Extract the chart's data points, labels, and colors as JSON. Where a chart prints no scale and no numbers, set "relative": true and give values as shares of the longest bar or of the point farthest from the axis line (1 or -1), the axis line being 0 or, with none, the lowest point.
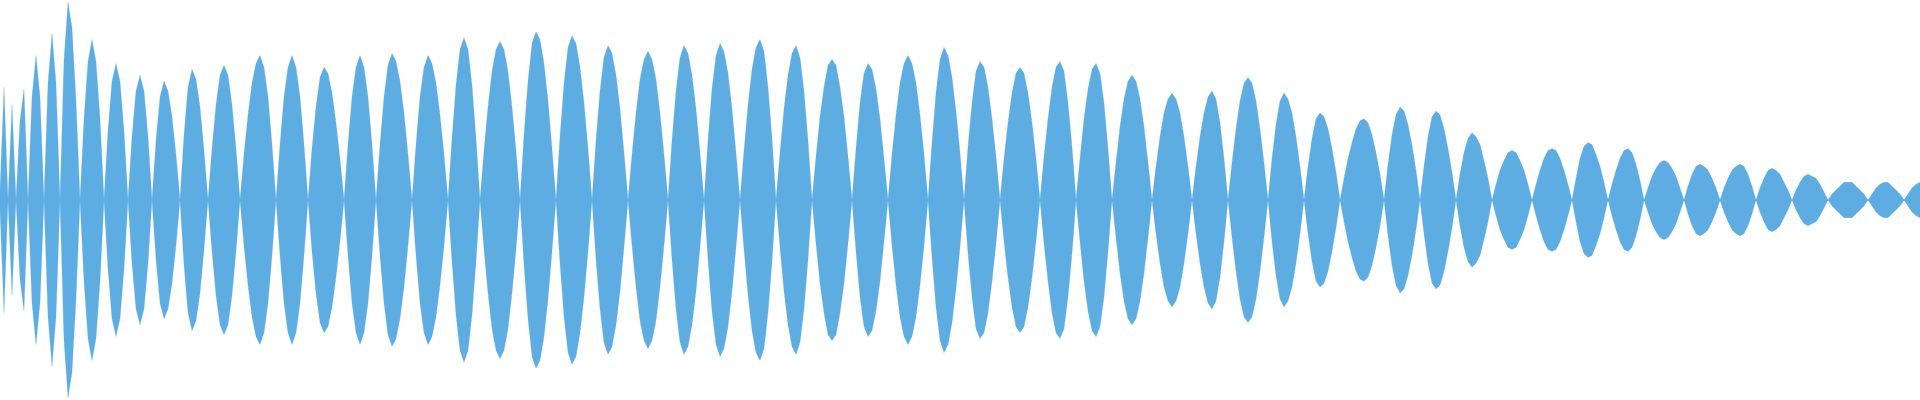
{
  "chart_data": {
    "type": "area",
    "relative": true,
    "categories": [
      null,
      null,
      null,
      null,
      null,
      null,
      null,
      null,
      null,
      null,
      null,
      null,
      null,
      null,
      null,
      null,
      null,
      null,
      null,
      null,
      null,
      null,
      null,
      null,
      null,
      null,
      null,
      null,
      null,
      null,
      null,
      null,
      null,
      null,
      null,
      null,
      null,
      null,
      null,
      null,
      null,
      null,
      null,
      null,
      null,
      null,
      null,
      null,
      null,
      null,
      null,
      null,
      null,
      null,
      null,
      null,
      null,
      null,
      null,
      null,
      null,
      null,
      null,
      null,
      null,
      null,
      null,
      null,
      null,
      null,
      null,
      null,
      null,
      null,
      null,
      null,
      null,
      null,
      null,
      null,
      null,
      null,
      null,
      null,
      null,
      null,
      null,
      null,
      null,
      null,
      null,
      null,
      null,
      null,
      null,
      null,
      null,
      null,
      null,
      null,
      null,
      null,
      null,
      null,
      null,
      null,
      null,
      null,
      null,
      null,
      null,
      null,
      null,
      null,
      null,
      null,
      null,
      null,
      null,
      null,
      null,
      null,
      null,
      null,
      null,
      null,
      null,
      null,
      null,
      null,
      null,
      null,
      null,
      null,
      null,
      null,
      null,
      null,
      null,
      null,
      null,
      null,
      null,
      null,
      null,
      null,
      null,
      null,
      null,
      null,
      null,
      null,
      null,
      null,
      null,
      null,
      null,
      null,
      null,
      null,
      null,
      null,
      null,
      null,
      null,
      null,
      null,
      null,
      null,
      null,
      null,
      null,
      null,
      null,
      null,
      null,
      null,
      null,
      null,
      null,
      null,
      null,
      null,
      null,
      null,
      null,
      null,
      null,
      null,
      null,
      null,
      null,
      null,
      null,
      null,
      null,
      null,
      null,
      null,
      null,
      null,
      null,
      null,
      null,
      null,
      null,
      null,
      null,
      null,
      null,
      null,
      null,
      null,
      null,
      null,
      null,
      null,
      null,
      null,
      null,
      null,
      null,
      null,
      null,
      null,
      null,
      null,
      null,
      null,
      null,
      null,
      null,
      null,
      null,
      null,
      null,
      null,
      null,
      null,
      null,
      null,
      null,
      null,
      null,
      null,
      null,
      null,
      null,
      null,
      null,
      null,
      null,
      null,
      null,
      null,
      null,
      null,
      null,
      null,
      null,
      null,
      null,
      null,
      null,
      null,
      null,
      null,
      null,
      null,
      null,
      null,
      null,
      null,
      null,
      null,
      null,
      null,
      null,
      null,
      null,
      null,
      null,
      null,
      null,
      null,
      null,
      null,
      null,
      null,
      null,
      null,
      null,
      null,
      null,
      null,
      null,
      null,
      null,
      null,
      null,
      null,
      null,
      null,
      null,
      null,
      null,
      null,
      null,
      null,
      null,
      null,
      null,
      null,
      null,
      null,
      null,
      null,
      null,
      null,
      null,
      null,
      null,
      null,
      null,
      null,
      null,
      null,
      null,
      null,
      null,
      null,
      null,
      null,
      null,
      null,
      null,
      null,
      null,
      null,
      null,
      null,
      null,
      null,
      null,
      null,
      null,
      null,
      null,
      null,
      null,
      null,
      null,
      null,
      null,
      null,
      null,
      null,
      null,
      null,
      null,
      null,
      null,
      null,
      null,
      null,
      null,
      null,
      null,
      null,
      null,
      null,
      null,
      null,
      null,
      null,
      null,
      null,
      null,
      null,
      null,
      null,
      null,
      null,
      null,
      null,
      null,
      null,
      null,
      null,
      null,
      null,
      null,
      null,
      null,
      null,
      null,
      null,
      null,
      null,
      null,
      null,
      null,
      null,
      null,
      null,
      null,
      null,
      null,
      null,
      null,
      null,
      null,
      null,
      null,
      null,
      null,
      null,
      null,
      null,
      null,
      null,
      null,
      null,
      null,
      null,
      null,
      null,
      null,
      null,
      null,
      null,
      null,
      null,
      null,
      null,
      null,
      null,
      null,
      null,
      null,
      null,
      null,
      null,
      null,
      null,
      null,
      null,
      null,
      null,
      null,
      null,
      null,
      null,
      null,
      null,
      null,
      null,
      null,
      null,
      null,
      null,
      null,
      null,
      null,
      null,
      null,
      null,
      null,
      null,
      null,
      null,
      null,
      null,
      null,
      null,
      null,
      null,
      null,
      null,
      null,
      null
    ],
    "ref_lines": [
      {
        "axis": "y",
        "value": 0,
        "color": "#5dade2"
      }
    ],
    "series": [
      {
        "color": "#5dade2",
        "values": [
          0.05,
          0.57,
          0,
          0.48,
          0,
          0.4,
          0.56,
          0,
          0.52,
          0.73,
          0.52,
          0,
          0.59,
          0.84,
          0.59,
          0,
          0.71,
          1,
          0.87,
          0.5,
          0,
          0.41,
          0.7,
          0.81,
          0.7,
          0.41,
          0,
          0.35,
          0.6,
          0.69,
          0.6,
          0.35,
          0,
          0.32,
          0.55,
          0.63,
          0.55,
          0.32,
          0,
          0.3,
          0.52,
          0.6,
          0.55,
          0.42,
          0.23,
          0,
          0.33,
          0.57,
          0.66,
          0.61,
          0.47,
          0.25,
          0,
          0.26,
          0.48,
          0.63,
          0.68,
          0.63,
          0.48,
          0.26,
          0,
          0.23,
          0.43,
          0.59,
          0.69,
          0.73,
          0.67,
          0.52,
          0.28,
          0,
          0.28,
          0.52,
          0.67,
          0.73,
          0.67,
          0.52,
          0.28,
          0,
          0.26,
          0.47,
          0.62,
          0.67,
          0.64,
          0.54,
          0.39,
          0.21,
          0,
          0.28,
          0.52,
          0.67,
          0.73,
          0.67,
          0.52,
          0.28,
          0,
          0.28,
          0.52,
          0.68,
          0.74,
          0.7,
          0.6,
          0.44,
          0.23,
          0,
          0.28,
          0.52,
          0.67,
          0.73,
          0.69,
          0.59,
          0.43,
          0.23,
          0,
          0.31,
          0.58,
          0.76,
          0.82,
          0.76,
          0.58,
          0.31,
          0,
          0.25,
          0.47,
          0.65,
          0.76,
          0.8,
          0.76,
          0.65,
          0.47,
          0.25,
          0,
          0.33,
          0.6,
          0.79,
          0.85,
          0.81,
          0.69,
          0.5,
          0.26,
          0,
          0.32,
          0.59,
          0.77,
          0.83,
          0.79,
          0.67,
          0.49,
          0.26,
          0,
          0.3,
          0.55,
          0.72,
          0.78,
          0.74,
          0.63,
          0.46,
          0.24,
          0,
          0.23,
          0.44,
          0.61,
          0.71,
          0.75,
          0.71,
          0.61,
          0.44,
          0.23,
          0,
          0.3,
          0.55,
          0.72,
          0.78,
          0.74,
          0.63,
          0.46,
          0.24,
          0,
          0.3,
          0.56,
          0.73,
          0.79,
          0.75,
          0.64,
          0.46,
          0.24,
          0,
          0.25,
          0.48,
          0.66,
          0.77,
          0.81,
          0.75,
          0.57,
          0.31,
          0,
          0.24,
          0.46,
          0.63,
          0.74,
          0.78,
          0.72,
          0.55,
          0.3,
          0,
          0.22,
          0.42,
          0.57,
          0.68,
          0.71,
          0.68,
          0.57,
          0.42,
          0.22,
          0,
          0.26,
          0.49,
          0.64,
          0.69,
          0.66,
          0.56,
          0.41,
          0.21,
          0,
          0.23,
          0.43,
          0.59,
          0.69,
          0.73,
          0.69,
          0.59,
          0.43,
          0.23,
          0,
          0.29,
          0.54,
          0.71,
          0.77,
          0.73,
          0.62,
          0.45,
          0.24,
          0,
          0.27,
          0.49,
          0.65,
          0.7,
          0.67,
          0.57,
          0.41,
          0.22,
          0,
          0.21,
          0.39,
          0.54,
          0.64,
          0.67,
          0.64,
          0.54,
          0.39,
          0.21,
          0,
          0.22,
          0.41,
          0.57,
          0.67,
          0.7,
          0.65,
          0.49,
          0.27,
          0,
          0.21,
          0.41,
          0.56,
          0.66,
          0.69,
          0.64,
          0.49,
          0.26,
          0,
          0.19,
          0.37,
          0.51,
          0.6,
          0.63,
          0.6,
          0.51,
          0.37,
          0.19,
          0,
          0.17,
          0.32,
          0.44,
          0.51,
          0.54,
          0.51,
          0.44,
          0.32,
          0.17,
          0,
          0.17,
          0.32,
          0.44,
          0.52,
          0.55,
          0.51,
          0.39,
          0.21,
          0,
          0.19,
          0.36,
          0.5,
          0.59,
          0.62,
          0.59,
          0.5,
          0.36,
          0.19,
          0,
          0.21,
          0.38,
          0.5,
          0.54,
          0.51,
          0.44,
          0.32,
          0.17,
          0,
          0.17,
          0.31,
          0.41,
          0.44,
          0.42,
          0.36,
          0.26,
          0.14,
          0,
          0.11,
          0.21,
          0.29,
          0.36,
          0.4,
          0.41,
          0.39,
          0.33,
          0.24,
          0.13,
          0,
          0.18,
          0.33,
          0.43,
          0.47,
          0.45,
          0.38,
          0.28,
          0.15,
          0,
          0.17,
          0.32,
          0.42,
          0.45,
          0.43,
          0.36,
          0.26,
          0.14,
          0,
          0.13,
          0.24,
          0.31,
          0.34,
          0.32,
          0.28,
          0.2,
          0.11,
          0,
          0.08,
          0.15,
          0.2,
          0.24,
          0.25,
          0.24,
          0.2,
          0.15,
          0.08,
          0,
          0.08,
          0.15,
          0.21,
          0.25,
          0.26,
          0.25,
          0.21,
          0.15,
          0.08,
          0,
          0.11,
          0.21,
          0.27,
          0.29,
          0.28,
          0.23,
          0.17,
          0.09,
          0,
          0.08,
          0.15,
          0.21,
          0.25,
          0.26,
          0.24,
          0.18,
          0.1,
          0,
          0.06,
          0.12,
          0.16,
          0.19,
          0.2,
          0.19,
          0.16,
          0.12,
          0.06,
          0,
          0.07,
          0.13,
          0.17,
          0.18,
          0.17,
          0.15,
          0.11,
          0.06,
          0,
          0.06,
          0.11,
          0.15,
          0.17,
          0.18,
          0.17,
          0.13,
          0.07,
          0,
          0.06,
          0.11,
          0.15,
          0.16,
          0.15,
          0.13,
          0.09,
          0.05,
          0,
          0.05,
          0.09,
          0.12,
          0.13,
          0.12,
          0.11,
          0.08,
          0.04,
          0,
          0.03,
          0.05,
          0.07,
          0.09,
          0.09,
          0.09,
          0.07,
          0.05,
          0.03,
          0,
          0.03,
          0.06,
          0.08,
          0.09,
          0.09,
          0.07,
          0.05,
          0.03,
          0,
          0.03,
          0.06,
          0.08,
          0.09
        ]
      },
      {
        "color": "#5dade2",
        "values": [
          -0.05,
          -0.57,
          0,
          -0.48,
          0,
          -0.4,
          -0.56,
          0,
          -0.52,
          -0.73,
          -0.52,
          0,
          -0.59,
          -0.84,
          -0.59,
          0,
          -0.71,
          -1,
          -0.87,
          -0.5,
          0,
          -0.41,
          -0.7,
          -0.81,
          -0.7,
          -0.41,
          0,
          -0.35,
          -0.6,
          -0.69,
          -0.6,
          -0.35,
          0,
          -0.32,
          -0.55,
          -0.63,
          -0.55,
          -0.32,
          0,
          -0.3,
          -0.52,
          -0.6,
          -0.55,
          -0.42,
          -0.23,
          0,
          -0.33,
          -0.57,
          -0.66,
          -0.61,
          -0.47,
          -0.25,
          0,
          -0.26,
          -0.48,
          -0.63,
          -0.68,
          -0.63,
          -0.48,
          -0.26,
          0,
          -0.23,
          -0.43,
          -0.59,
          -0.69,
          -0.73,
          -0.67,
          -0.52,
          -0.28,
          0,
          -0.28,
          -0.52,
          -0.67,
          -0.73,
          -0.67,
          -0.52,
          -0.28,
          0,
          -0.26,
          -0.47,
          -0.62,
          -0.67,
          -0.64,
          -0.54,
          -0.39,
          -0.21,
          0,
          -0.28,
          -0.52,
          -0.67,
          -0.73,
          -0.67,
          -0.52,
          -0.28,
          0,
          -0.28,
          -0.52,
          -0.68,
          -0.74,
          -0.7,
          -0.6,
          -0.44,
          -0.23,
          0,
          -0.28,
          -0.52,
          -0.67,
          -0.73,
          -0.69,
          -0.59,
          -0.43,
          -0.23,
          0,
          -0.31,
          -0.58,
          -0.76,
          -0.82,
          -0.76,
          -0.58,
          -0.31,
          0,
          -0.25,
          -0.47,
          -0.65,
          -0.76,
          -0.8,
          -0.76,
          -0.65,
          -0.47,
          -0.25,
          0,
          -0.33,
          -0.6,
          -0.79,
          -0.85,
          -0.81,
          -0.69,
          -0.5,
          -0.26,
          0,
          -0.32,
          -0.59,
          -0.77,
          -0.83,
          -0.79,
          -0.67,
          -0.49,
          -0.26,
          0,
          -0.3,
          -0.55,
          -0.72,
          -0.78,
          -0.74,
          -0.63,
          -0.46,
          -0.24,
          0,
          -0.23,
          -0.44,
          -0.61,
          -0.71,
          -0.75,
          -0.71,
          -0.61,
          -0.44,
          -0.23,
          0,
          -0.3,
          -0.55,
          -0.72,
          -0.78,
          -0.74,
          -0.63,
          -0.46,
          -0.24,
          0,
          -0.3,
          -0.56,
          -0.73,
          -0.79,
          -0.75,
          -0.64,
          -0.46,
          -0.24,
          0,
          -0.25,
          -0.48,
          -0.66,
          -0.77,
          -0.81,
          -0.75,
          -0.57,
          -0.31,
          0,
          -0.24,
          -0.46,
          -0.63,
          -0.74,
          -0.78,
          -0.72,
          -0.55,
          -0.3,
          0,
          -0.22,
          -0.42,
          -0.57,
          -0.68,
          -0.71,
          -0.68,
          -0.57,
          -0.42,
          -0.22,
          0,
          -0.26,
          -0.49,
          -0.64,
          -0.69,
          -0.66,
          -0.56,
          -0.41,
          -0.21,
          0,
          -0.23,
          -0.43,
          -0.59,
          -0.69,
          -0.73,
          -0.69,
          -0.59,
          -0.43,
          -0.23,
          0,
          -0.29,
          -0.54,
          -0.71,
          -0.77,
          -0.73,
          -0.62,
          -0.45,
          -0.24,
          0,
          -0.27,
          -0.49,
          -0.65,
          -0.7,
          -0.67,
          -0.57,
          -0.41,
          -0.22,
          0,
          -0.21,
          -0.39,
          -0.54,
          -0.64,
          -0.67,
          -0.64,
          -0.54,
          -0.39,
          -0.21,
          0,
          -0.22,
          -0.41,
          -0.57,
          -0.67,
          -0.7,
          -0.65,
          -0.49,
          -0.27,
          0,
          -0.21,
          -0.41,
          -0.56,
          -0.66,
          -0.69,
          -0.64,
          -0.49,
          -0.26,
          0,
          -0.19,
          -0.37,
          -0.51,
          -0.6,
          -0.63,
          -0.6,
          -0.51,
          -0.37,
          -0.19,
          0,
          -0.17,
          -0.32,
          -0.44,
          -0.51,
          -0.54,
          -0.51,
          -0.44,
          -0.32,
          -0.17,
          0,
          -0.17,
          -0.32,
          -0.44,
          -0.52,
          -0.55,
          -0.51,
          -0.39,
          -0.21,
          0,
          -0.19,
          -0.36,
          -0.5,
          -0.59,
          -0.62,
          -0.59,
          -0.5,
          -0.36,
          -0.19,
          0,
          -0.21,
          -0.38,
          -0.5,
          -0.54,
          -0.51,
          -0.44,
          -0.32,
          -0.17,
          0,
          -0.17,
          -0.31,
          -0.41,
          -0.44,
          -0.42,
          -0.36,
          -0.26,
          -0.14,
          0,
          -0.11,
          -0.21,
          -0.29,
          -0.36,
          -0.4,
          -0.41,
          -0.39,
          -0.33,
          -0.24,
          -0.13,
          0,
          -0.18,
          -0.33,
          -0.43,
          -0.47,
          -0.45,
          -0.38,
          -0.28,
          -0.15,
          0,
          -0.17,
          -0.32,
          -0.42,
          -0.45,
          -0.43,
          -0.36,
          -0.26,
          -0.14,
          0,
          -0.13,
          -0.24,
          -0.31,
          -0.34,
          -0.32,
          -0.28,
          -0.2,
          -0.11,
          0,
          -0.08,
          -0.15,
          -0.2,
          -0.24,
          -0.25,
          -0.24,
          -0.2,
          -0.15,
          -0.08,
          0,
          -0.08,
          -0.15,
          -0.21,
          -0.25,
          -0.26,
          -0.25,
          -0.21,
          -0.15,
          -0.08,
          0,
          -0.11,
          -0.21,
          -0.27,
          -0.29,
          -0.28,
          -0.23,
          -0.17,
          -0.09,
          0,
          -0.08,
          -0.15,
          -0.21,
          -0.25,
          -0.26,
          -0.24,
          -0.18,
          -0.1,
          0,
          -0.06,
          -0.12,
          -0.16,
          -0.19,
          -0.2,
          -0.19,
          -0.16,
          -0.12,
          -0.06,
          0,
          -0.07,
          -0.13,
          -0.17,
          -0.18,
          -0.17,
          -0.15,
          -0.11,
          -0.06,
          0,
          -0.06,
          -0.11,
          -0.15,
          -0.17,
          -0.18,
          -0.17,
          -0.13,
          -0.07,
          0,
          -0.06,
          -0.11,
          -0.15,
          -0.16,
          -0.15,
          -0.13,
          -0.09,
          -0.05,
          0,
          -0.05,
          -0.09,
          -0.12,
          -0.13,
          -0.12,
          -0.11,
          -0.08,
          -0.04,
          0,
          -0.03,
          -0.05,
          -0.07,
          -0.09,
          -0.09,
          -0.09,
          -0.07,
          -0.05,
          -0.03,
          0,
          -0.03,
          -0.06,
          -0.08,
          -0.09,
          -0.09,
          -0.07,
          -0.05,
          -0.03,
          0,
          -0.03,
          -0.06,
          -0.08,
          -0.09
        ]
      }
    ]
  }
}
